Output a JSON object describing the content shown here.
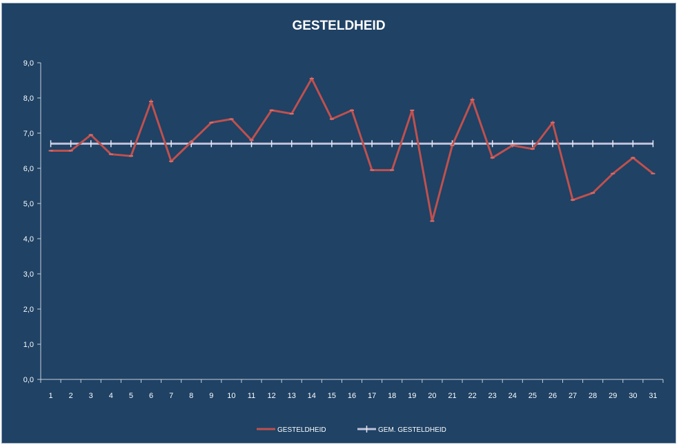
{
  "chart_data": {
    "type": "line",
    "title": "GESTELDHEID",
    "xlabel": "",
    "ylabel": "",
    "categories": [
      "1",
      "2",
      "3",
      "4",
      "5",
      "6",
      "7",
      "8",
      "9",
      "10",
      "11",
      "12",
      "13",
      "14",
      "15",
      "16",
      "17",
      "18",
      "19",
      "20",
      "21",
      "22",
      "23",
      "24",
      "25",
      "26",
      "27",
      "28",
      "29",
      "30",
      "31"
    ],
    "ylim": [
      0,
      9
    ],
    "y_ticks": [
      "0,0",
      "1,0",
      "2,0",
      "3,0",
      "4,0",
      "5,0",
      "6,0",
      "7,0",
      "8,0",
      "9,0"
    ],
    "grid": false,
    "legend_position": "bottom",
    "series": [
      {
        "name": "GESTELDHEID",
        "color": "#c0504d",
        "marker": "dash",
        "values": [
          6.5,
          6.5,
          6.95,
          6.4,
          6.35,
          7.9,
          6.2,
          6.75,
          7.3,
          7.4,
          6.8,
          7.65,
          7.55,
          8.55,
          7.4,
          7.65,
          5.95,
          5.95,
          7.65,
          4.5,
          6.65,
          7.95,
          6.3,
          6.65,
          6.55,
          7.3,
          5.1,
          5.3,
          5.85,
          6.3,
          5.85
        ]
      },
      {
        "name": "GEM. GESTELDHEID",
        "color": "#c3c3dc",
        "marker": "cross",
        "values": [
          6.7,
          6.7,
          6.7,
          6.7,
          6.7,
          6.7,
          6.7,
          6.7,
          6.7,
          6.7,
          6.7,
          6.7,
          6.7,
          6.7,
          6.7,
          6.7,
          6.7,
          6.7,
          6.7,
          6.7,
          6.7,
          6.7,
          6.7,
          6.7,
          6.7,
          6.7,
          6.7,
          6.7,
          6.7,
          6.7,
          6.7
        ]
      }
    ]
  }
}
